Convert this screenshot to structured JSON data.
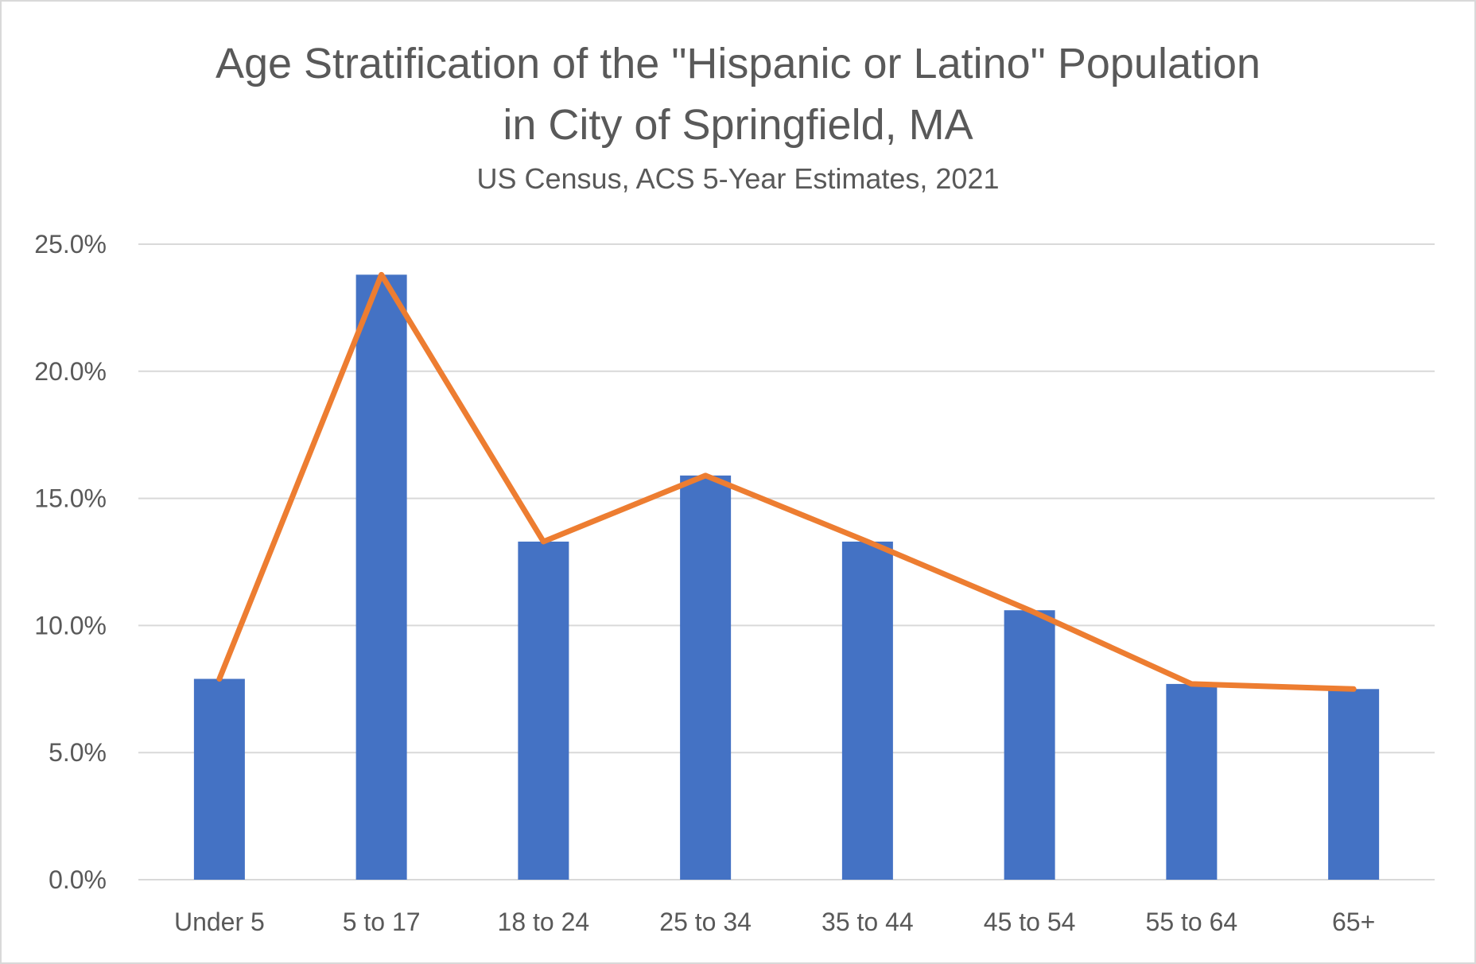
{
  "chart_data": {
    "type": "bar",
    "title_line1": "Age Stratification of the \"Hispanic or Latino\" Population",
    "title_line2": "in City of Springfield, MA",
    "subtitle": "US Census, ACS 5-Year Estimates, 2021",
    "categories": [
      "Under 5",
      "5 to 17",
      "18 to 24",
      "25 to 34",
      "35 to 44",
      "45 to 54",
      "55 to 64",
      "65+"
    ],
    "series": [
      {
        "type": "bar",
        "values": [
          7.9,
          23.8,
          13.3,
          15.9,
          13.3,
          10.6,
          7.7,
          7.5
        ],
        "color": "#4472c4"
      },
      {
        "type": "line",
        "values": [
          7.9,
          23.8,
          13.3,
          15.9,
          13.3,
          10.6,
          7.7,
          7.5
        ],
        "color": "#ed7d31"
      }
    ],
    "yticks": [
      "0.0%",
      "5.0%",
      "10.0%",
      "15.0%",
      "20.0%",
      "25.0%"
    ],
    "ylim": [
      0,
      25
    ],
    "grid": true,
    "legend": "none"
  }
}
